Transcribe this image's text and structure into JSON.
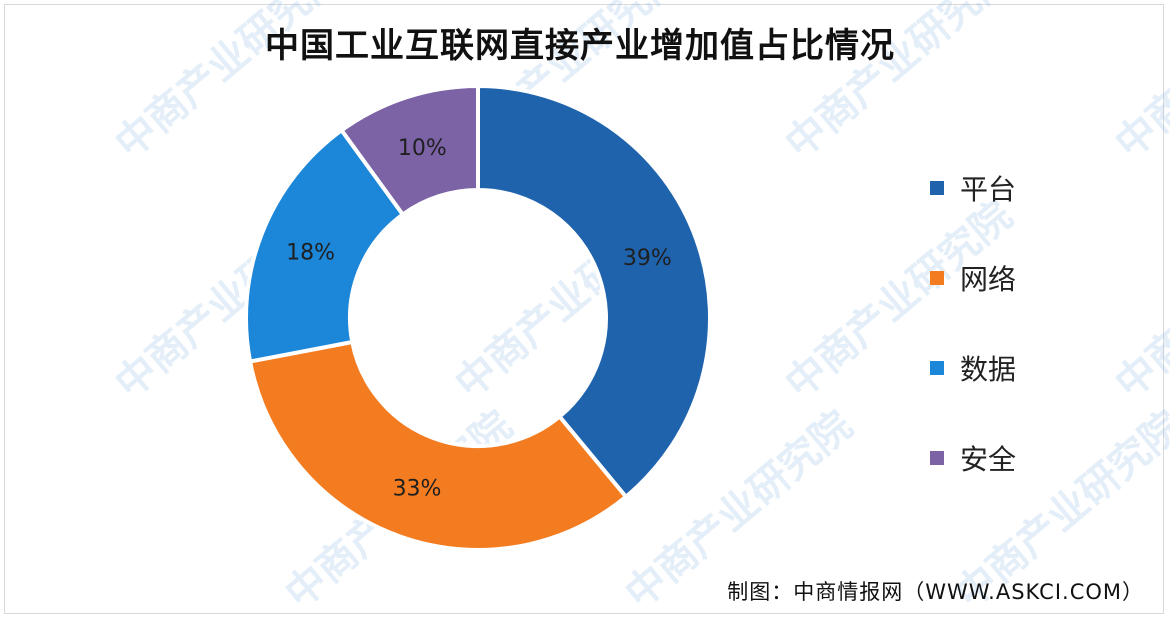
{
  "chart_data": {
    "type": "pie",
    "title": "中国工业互联网直接产业增加值占比情况",
    "categories": [
      "平台",
      "网络",
      "数据",
      "安全"
    ],
    "values": [
      39,
      33,
      18,
      10
    ],
    "labels": [
      "39%",
      "33%",
      "18%",
      "10%"
    ],
    "colors": [
      "#1f63ad",
      "#f47c20",
      "#1c86d8",
      "#7b63a6"
    ],
    "legend": "right",
    "donut": true
  },
  "source": "制图：中商情报网（WWW.ASKCI.COM）",
  "watermark": "中商产业研究院"
}
